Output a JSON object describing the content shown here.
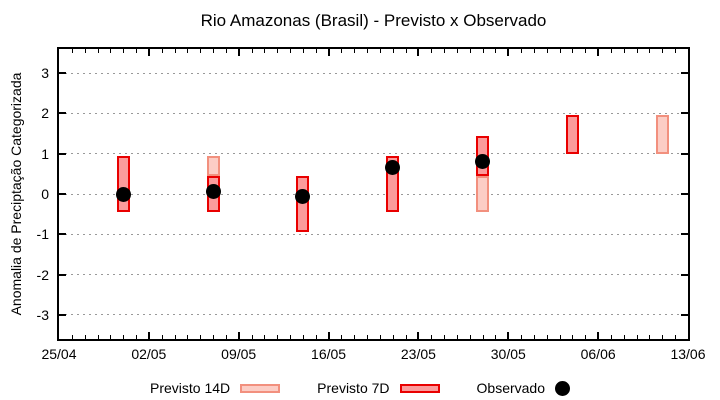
{
  "chart_data": {
    "type": "bar",
    "title": "Rio Amazonas (Brasil) - Previsto x Observado",
    "ylabel": "Anomalia de Preciptação Categorizada",
    "ylim": [
      -3.6,
      3.6
    ],
    "yticks": [
      3,
      2,
      1,
      0,
      -1,
      -2,
      -3
    ],
    "grid": "horizontal-dashed",
    "x_axis": {
      "total_days": 49,
      "major_tick_day_offsets": [
        0,
        7,
        14,
        21,
        28,
        35,
        42,
        49
      ],
      "tick_labels": [
        "25/04",
        "02/05",
        "09/05",
        "16/05",
        "23/05",
        "30/05",
        "06/06",
        "13/06"
      ],
      "minor_tick_every_days": 1
    },
    "bars": [
      {
        "date": "30/04",
        "day_offset": 5,
        "segments": [
          {
            "series": "previsto_7d",
            "from": -0.45,
            "to": 0.95
          }
        ],
        "observado": 0.0
      },
      {
        "date": "07/05",
        "day_offset": 12,
        "segments": [
          {
            "series": "previsto_14d",
            "from": 0.45,
            "to": 0.95
          },
          {
            "series": "previsto_7d",
            "from": -0.45,
            "to": 0.45
          }
        ],
        "observado": 0.05
      },
      {
        "date": "14/05",
        "day_offset": 19,
        "segments": [
          {
            "series": "previsto_7d",
            "from": -0.95,
            "to": 0.45
          }
        ],
        "observado": -0.05
      },
      {
        "date": "21/05",
        "day_offset": 26,
        "segments": [
          {
            "series": "previsto_7d",
            "from": -0.45,
            "to": 0.95
          }
        ],
        "observado": 0.65
      },
      {
        "date": "28/05",
        "day_offset": 33,
        "segments": [
          {
            "series": "previsto_14d",
            "from": -0.45,
            "to": 0.45
          },
          {
            "series": "previsto_7d",
            "from": 0.45,
            "to": 1.45
          }
        ],
        "observado": 0.8
      },
      {
        "date": "04/06",
        "day_offset": 40,
        "segments": [
          {
            "series": "previsto_7d",
            "from": 1.0,
            "to": 1.95
          }
        ],
        "observado": null
      },
      {
        "date": "11/06",
        "day_offset": 47,
        "segments": [
          {
            "series": "previsto_14d",
            "from": 1.0,
            "to": 1.95
          }
        ],
        "observado": null
      }
    ],
    "legend": {
      "position": "bottom-center",
      "items": [
        {
          "label": "Previsto 14D",
          "series": "previsto_14d",
          "swatch": "bar"
        },
        {
          "label": "Previsto 7D",
          "series": "previsto_7d",
          "swatch": "bar"
        },
        {
          "label": "Observado",
          "series": "observado",
          "swatch": "dot"
        }
      ]
    },
    "colors": {
      "previsto_14d_fill": "#fccdc5",
      "previsto_14d_border": "#f2907e",
      "previsto_7d_fill": "#fb9b9b",
      "previsto_7d_border": "#e90000",
      "observado": "#000000",
      "grid": "#999999",
      "axis": "#000000",
      "background": "#ffffff"
    }
  }
}
